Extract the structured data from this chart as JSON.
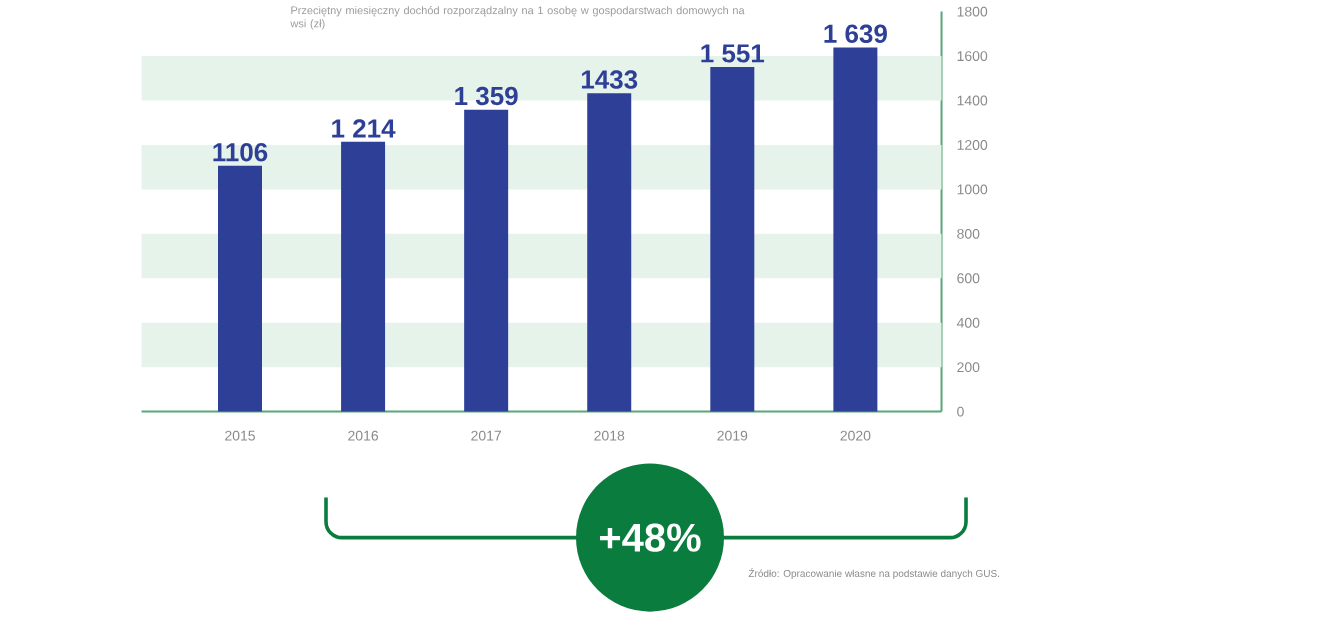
{
  "chart_data": {
    "type": "bar",
    "title": "Przeciętny miesięczny dochód rozporządzalny na 1 osobę w gospodarstwach domowych na wsi (zł)",
    "categories": [
      "2015",
      "2016",
      "2017",
      "2018",
      "2019",
      "2020"
    ],
    "values": [
      1106,
      1214,
      1359,
      1433,
      1551,
      1639
    ],
    "value_labels": [
      "1106",
      "1 214",
      "1 359",
      "1433",
      "1 551",
      "1 639"
    ],
    "color": "#2e3f97",
    "ylim": [
      0,
      1800
    ],
    "yticks": [
      0,
      200,
      400,
      600,
      800,
      1000,
      1200,
      1400,
      1600,
      1800
    ],
    "bands": [
      {
        "axis": "y",
        "from": 200,
        "to": 400,
        "color": "#e6f3ea"
      },
      {
        "axis": "y",
        "from": 600,
        "to": 800,
        "color": "#e6f3ea"
      },
      {
        "axis": "y",
        "from": 1000,
        "to": 1200,
        "color": "#e6f3ea"
      },
      {
        "axis": "y",
        "from": 1400,
        "to": 1600,
        "color": "#e6f3ea"
      }
    ],
    "annotations": [
      "+48%",
      "Źródło: Opracowanie własne na podstawie danych GUS."
    ]
  }
}
